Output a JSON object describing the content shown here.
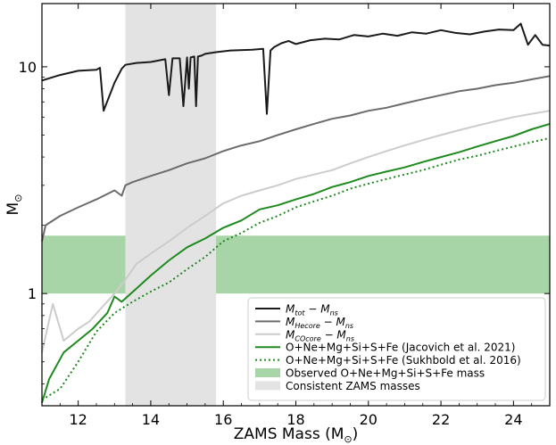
{
  "chart_data": {
    "type": "line",
    "xlabel": "ZAMS Mass (M",
    "xlabel_sun": "⊙",
    "xlabel_close": ")",
    "ylabel": "M",
    "ylabel_sun": "⊙",
    "xlim": [
      11.0,
      25.0
    ],
    "ylim": [
      0.32,
      19.0
    ],
    "yscale": "log",
    "grid": false,
    "legend_position": "lower-right",
    "x_ticks": [
      12,
      14,
      16,
      18,
      20,
      22,
      24
    ],
    "x_tick_labels": [
      "12",
      "14",
      "16",
      "18",
      "20",
      "22",
      "24"
    ],
    "y_ticks": [
      1,
      10
    ],
    "y_tick_labels": [
      "1",
      "10"
    ],
    "bands": [
      {
        "name": "Observed O+Ne+Mg+Si+S+Fe mass",
        "orientation": "horizontal",
        "range": [
          1.0,
          1.8
        ],
        "color": "#a8d5a8"
      },
      {
        "name": "Consistent ZAMS masses",
        "orientation": "vertical",
        "range": [
          13.3,
          15.8
        ],
        "color": "#e3e3e3"
      }
    ],
    "series": [
      {
        "name": "M_tot − M_ns",
        "legend_main": "M",
        "legend_sub": "tot",
        "legend_rest": " − M",
        "legend_sub2": "ns",
        "color": "#1a1a1a",
        "width": 2,
        "dash": "",
        "x": [
          11.0,
          11.5,
          12.0,
          12.5,
          12.6,
          12.7,
          13.0,
          13.2,
          13.3,
          13.6,
          14.0,
          14.4,
          14.5,
          14.6,
          14.8,
          14.9,
          15.0,
          15.05,
          15.1,
          15.2,
          15.25,
          15.3,
          15.4,
          15.5,
          15.8,
          16.2,
          16.8,
          17.1,
          17.2,
          17.3,
          17.4,
          17.6,
          17.8,
          18.0,
          18.4,
          18.8,
          19.2,
          19.6,
          20.0,
          20.4,
          20.8,
          21.2,
          21.6,
          22.0,
          22.4,
          22.8,
          23.2,
          23.6,
          24.0,
          24.2,
          24.4,
          24.6,
          24.8,
          25.0
        ],
        "y": [
          8.7,
          9.2,
          9.6,
          9.7,
          9.9,
          6.4,
          8.5,
          9.8,
          10.2,
          10.4,
          10.5,
          10.8,
          7.5,
          10.9,
          10.9,
          6.7,
          11.0,
          8.0,
          11.0,
          11.1,
          6.7,
          11.1,
          11.2,
          11.4,
          11.6,
          11.8,
          11.9,
          12.0,
          6.2,
          11.8,
          12.2,
          12.7,
          13.0,
          12.6,
          13.1,
          13.3,
          13.2,
          13.8,
          13.6,
          14.0,
          13.7,
          14.2,
          14.0,
          14.5,
          14.1,
          13.9,
          14.3,
          14.6,
          14.5,
          15.5,
          12.5,
          13.8,
          12.5,
          12.4
        ]
      },
      {
        "name": "M_Hecore − M_ns",
        "legend_main": "M",
        "legend_sub": "Hecore",
        "legend_rest": " − M",
        "legend_sub2": "ns",
        "color": "#6b6b6b",
        "width": 2,
        "dash": "",
        "x": [
          11.0,
          11.1,
          11.5,
          12.0,
          12.5,
          13.0,
          13.2,
          13.3,
          13.5,
          14.0,
          14.5,
          15.0,
          15.5,
          16.0,
          16.5,
          17.0,
          17.5,
          18.0,
          18.5,
          19.0,
          19.5,
          20.0,
          20.5,
          21.0,
          21.5,
          22.0,
          22.5,
          23.0,
          23.5,
          24.0,
          24.5,
          25.0
        ],
        "y": [
          1.7,
          2.0,
          2.2,
          2.4,
          2.6,
          2.85,
          2.7,
          3.0,
          3.1,
          3.3,
          3.5,
          3.75,
          3.95,
          4.25,
          4.5,
          4.7,
          5.0,
          5.3,
          5.6,
          5.9,
          6.1,
          6.4,
          6.6,
          6.9,
          7.2,
          7.5,
          7.8,
          8.0,
          8.3,
          8.5,
          8.8,
          9.1
        ]
      },
      {
        "name": "M_COcore − M_ns",
        "legend_main": "M",
        "legend_sub": "COcore",
        "legend_rest": " − M",
        "legend_sub2": "ns",
        "color": "#cccccc",
        "width": 2,
        "dash": "",
        "x": [
          11.0,
          11.3,
          11.6,
          12.0,
          12.3,
          12.6,
          13.0,
          13.3,
          13.6,
          14.0,
          14.5,
          15.0,
          15.5,
          16.0,
          16.5,
          17.0,
          17.5,
          18.0,
          18.5,
          19.0,
          19.5,
          20.0,
          20.5,
          21.0,
          21.5,
          22.0,
          22.5,
          23.0,
          23.5,
          24.0,
          24.5,
          25.0
        ],
        "y": [
          0.55,
          0.9,
          0.62,
          0.7,
          0.75,
          0.85,
          1.0,
          1.15,
          1.35,
          1.5,
          1.7,
          1.95,
          2.2,
          2.5,
          2.7,
          2.85,
          3.0,
          3.2,
          3.35,
          3.5,
          3.75,
          4.0,
          4.25,
          4.5,
          4.75,
          5.0,
          5.25,
          5.5,
          5.75,
          6.0,
          6.2,
          6.4
        ]
      },
      {
        "name": "O+Ne+Mg+Si+S+Fe (Jacovich et al. 2021)",
        "color": "#1e8a1e",
        "width": 2,
        "dash": "",
        "x": [
          11.0,
          11.2,
          11.6,
          12.0,
          12.4,
          12.8,
          13.0,
          13.2,
          13.6,
          14.0,
          14.5,
          15.0,
          15.5,
          16.0,
          16.5,
          17.0,
          17.5,
          18.0,
          18.5,
          19.0,
          19.5,
          20.0,
          20.5,
          21.0,
          21.5,
          22.0,
          22.5,
          23.0,
          23.5,
          24.0,
          24.5,
          25.0
        ],
        "y": [
          0.33,
          0.42,
          0.55,
          0.62,
          0.7,
          0.82,
          0.97,
          0.92,
          1.05,
          1.2,
          1.4,
          1.6,
          1.75,
          1.95,
          2.1,
          2.35,
          2.45,
          2.6,
          2.75,
          2.95,
          3.1,
          3.3,
          3.45,
          3.6,
          3.8,
          4.0,
          4.2,
          4.45,
          4.7,
          4.95,
          5.3,
          5.6
        ]
      },
      {
        "name": "O+Ne+Mg+Si+S+Fe (Sukhbold et al. 2016)",
        "color": "#1e8a1e",
        "width": 2,
        "dash": "2,3",
        "x": [
          11.0,
          11.5,
          12.0,
          12.5,
          13.0,
          13.5,
          14.0,
          14.5,
          15.0,
          15.5,
          16.0,
          16.5,
          17.0,
          17.5,
          18.0,
          18.5,
          19.0,
          19.5,
          20.0,
          20.5,
          21.0,
          21.5,
          22.0,
          22.5,
          23.0,
          23.5,
          24.0,
          24.5,
          25.0
        ],
        "y": [
          0.34,
          0.38,
          0.5,
          0.68,
          0.82,
          0.92,
          1.02,
          1.12,
          1.28,
          1.45,
          1.7,
          1.85,
          2.05,
          2.2,
          2.4,
          2.55,
          2.7,
          2.9,
          3.05,
          3.2,
          3.35,
          3.5,
          3.7,
          3.9,
          4.05,
          4.25,
          4.45,
          4.65,
          4.85
        ]
      }
    ],
    "legend_band_labels": [
      "Observed O+Ne+Mg+Si+S+Fe mass",
      "Consistent ZAMS masses"
    ]
  }
}
